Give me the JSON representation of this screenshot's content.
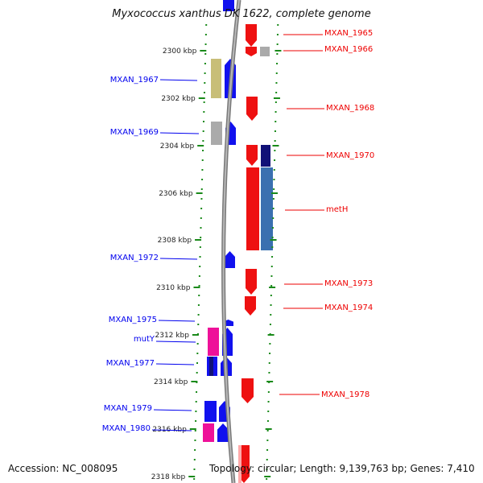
{
  "title": "Myxococcus xanthus DK 1622, complete genome",
  "footer": {
    "accession": "Accession: NC_008095",
    "topology": "Topology: circular; Length: 9,139,763 bp; Genes: 7,410"
  },
  "colors": {
    "forward_label": "#0000ee",
    "reverse_label": "#ee0000",
    "tick_green": "#1a8a1a",
    "backbone": "#888888"
  },
  "ticks": [
    {
      "label": "2300 kbp"
    },
    {
      "label": "2302 kbp"
    },
    {
      "label": "2304 kbp"
    },
    {
      "label": "2306 kbp"
    },
    {
      "label": "2308 kbp"
    },
    {
      "label": "2310 kbp"
    },
    {
      "label": "2312 kbp"
    },
    {
      "label": "2314 kbp"
    },
    {
      "label": "2316 kbp"
    },
    {
      "label": "2318 kbp"
    }
  ],
  "genes_left": [
    {
      "label": "MXAN_1967"
    },
    {
      "label": "MXAN_1969"
    },
    {
      "label": "MXAN_1972"
    },
    {
      "label": "MXAN_1975"
    },
    {
      "label": "mutY"
    },
    {
      "label": "MXAN_1977"
    },
    {
      "label": "MXAN_1979"
    },
    {
      "label": "MXAN_1980"
    }
  ],
  "genes_right": [
    {
      "label": "MXAN_1965"
    },
    {
      "label": "MXAN_1966"
    },
    {
      "label": "MXAN_1968"
    },
    {
      "label": "MXAN_1970"
    },
    {
      "label": "metH"
    },
    {
      "label": "MXAN_1973"
    },
    {
      "label": "MXAN_1974"
    },
    {
      "label": "MXAN_1978"
    }
  ]
}
